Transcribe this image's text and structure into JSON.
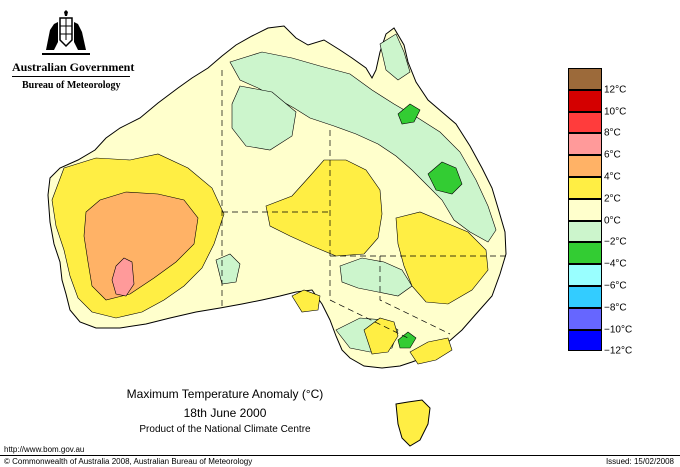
{
  "header": {
    "government": "Australian Government",
    "bureau": "Bureau of Meteorology"
  },
  "caption": {
    "title": "Maximum Temperature Anomaly (°C)",
    "date": "18th June 2000",
    "credit": "Product of the National Climate Centre"
  },
  "footer": {
    "url": "http://www.bom.gov.au",
    "copyright": "© Commonwealth of Australia 2008, Australian Bureau of Meteorology",
    "issued": "Issued: 15/02/2008"
  },
  "legend": {
    "colors": [
      "#9c6a3a",
      "#d40000",
      "#ff3c3c",
      "#ff9a9a",
      "#ffb266",
      "#ffee44",
      "#ffffcc",
      "#ccf5cc",
      "#33cc33",
      "#99ffff",
      "#33ccff",
      "#6666ff",
      "#0000ff"
    ],
    "labels": [
      "12°C",
      "10°C",
      "8°C",
      "6°C",
      "4°C",
      "2°C",
      "0°C",
      "−2°C",
      "−4°C",
      "−6°C",
      "−8°C",
      "−10°C",
      "−12°C"
    ]
  },
  "map_colors": {
    "cream": "#ffffcc",
    "yellow": "#ffee44",
    "orange": "#ffb266",
    "pink": "#ff9a9a",
    "lightgreen": "#ccf5cc",
    "green": "#33cc33"
  }
}
